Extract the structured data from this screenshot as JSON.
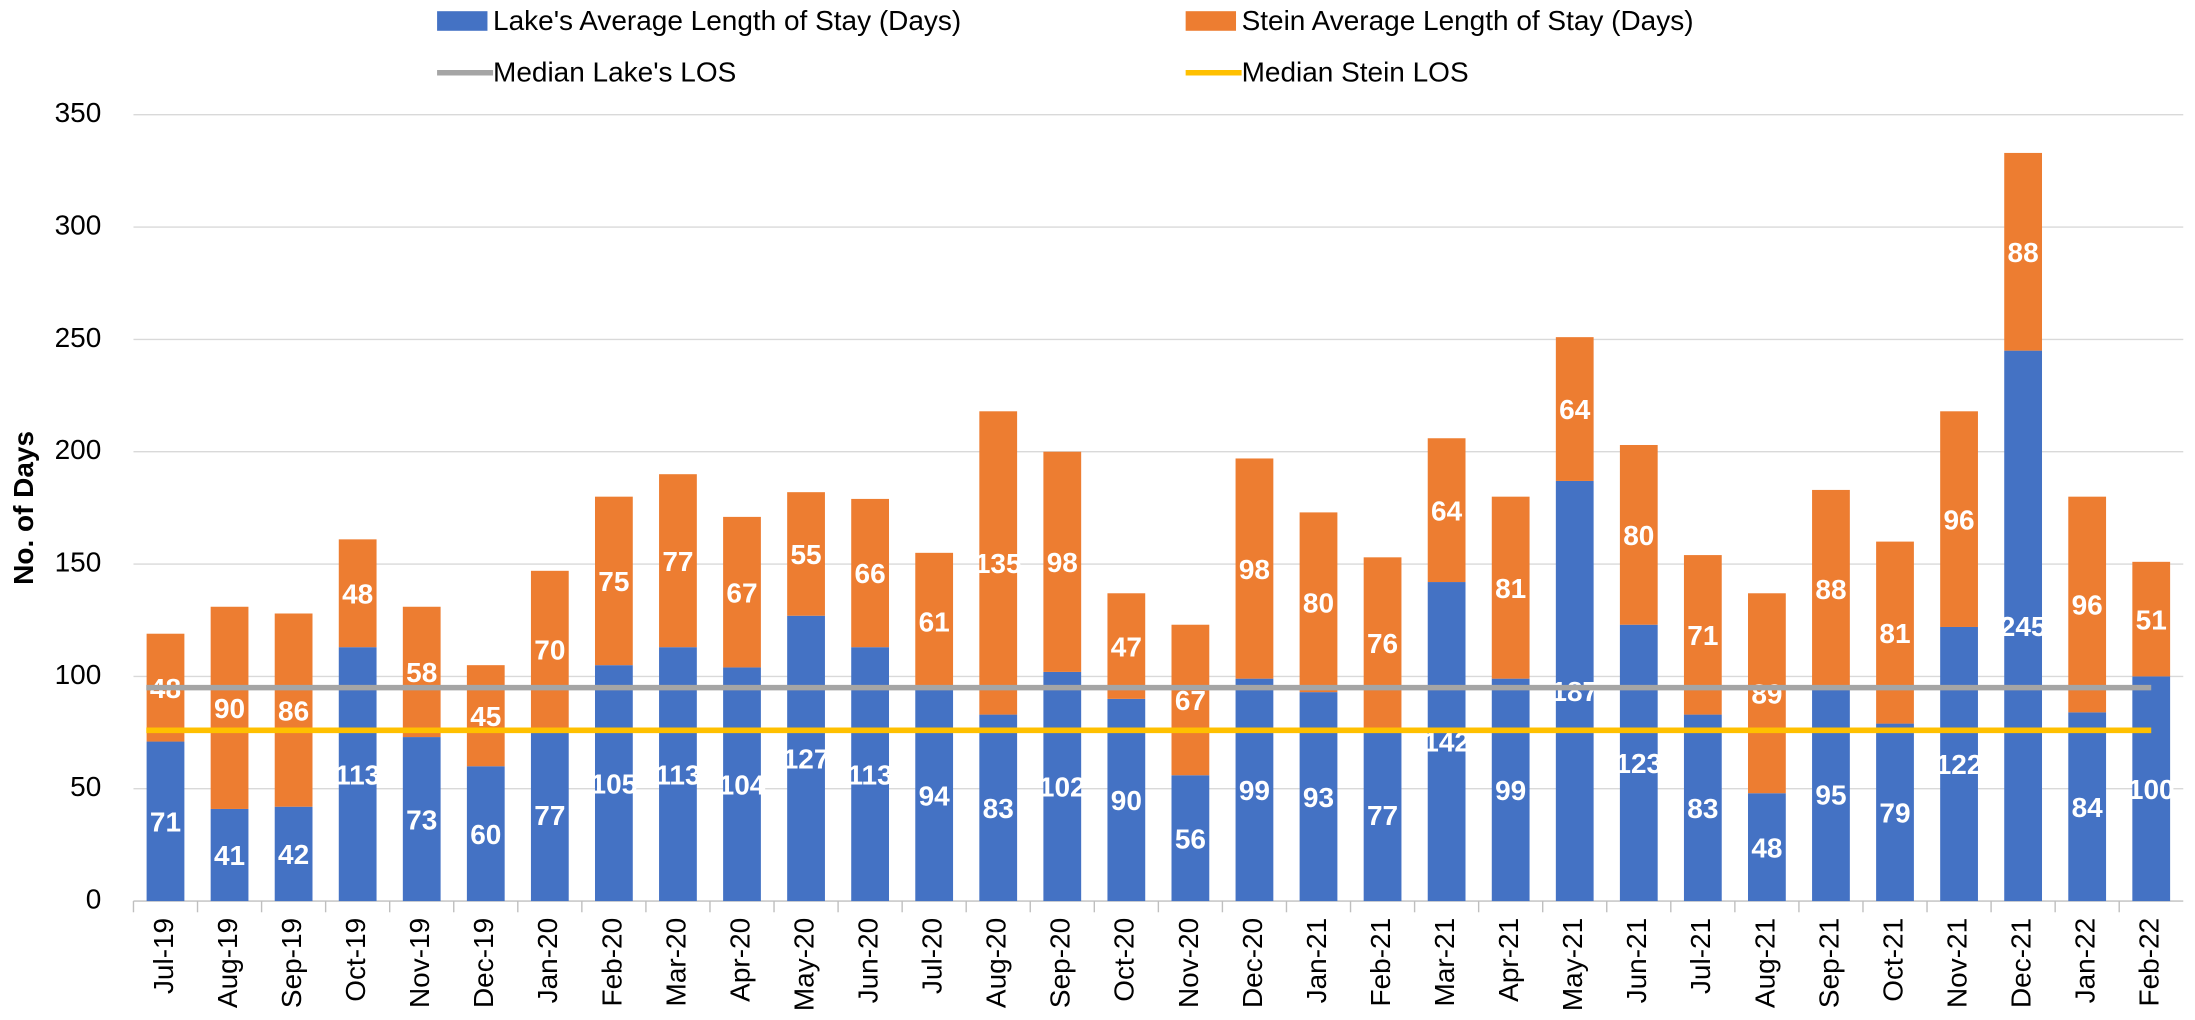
{
  "chart_data": {
    "type": "stacked_bar",
    "y_label": "No. of Days",
    "categories": [
      "Jul-19",
      "Aug-19",
      "Sep-19",
      "Oct-19",
      "Nov-19",
      "Dec-19",
      "Jan-20",
      "Feb-20",
      "Mar-20",
      "Apr-20",
      "May-20",
      "Jun-20",
      "Jul-20",
      "Aug-20",
      "Sep-20",
      "Oct-20",
      "Nov-20",
      "Dec-20",
      "Jan-21",
      "Feb-21",
      "Mar-21",
      "Apr-21",
      "May-21",
      "Jun-21",
      "Jul-21",
      "Aug-21",
      "Sep-21",
      "Oct-21",
      "Nov-21",
      "Dec-21",
      "Jan-22",
      "Feb-22"
    ],
    "series": [
      {
        "name": "Lake's Average Length of Stay (Days)",
        "color": "#4472c4",
        "values": [
          71,
          41,
          42,
          113,
          73,
          60,
          77,
          105,
          113,
          104,
          127,
          113,
          94,
          83,
          102,
          90,
          56,
          99,
          93,
          77,
          142,
          99,
          187,
          123,
          83,
          48,
          95,
          79,
          122,
          245,
          84,
          100
        ]
      },
      {
        "name": "Stein Average Length of Stay (Days)",
        "color": "#ed7d31",
        "values": [
          48,
          90,
          86,
          48,
          58,
          45,
          70,
          75,
          77,
          67,
          55,
          66,
          61,
          135,
          98,
          47,
          67,
          98,
          80,
          76,
          64,
          81,
          64,
          80,
          71,
          89,
          88,
          81,
          96,
          88,
          96,
          51
        ]
      }
    ],
    "median_lines": [
      {
        "name": "Median Lake's LOS",
        "color": "#a5a5a5",
        "value": 95
      },
      {
        "name": "Median Stein LOS",
        "color": "#ffc000",
        "value": 76
      }
    ],
    "ylim": [
      0,
      350
    ],
    "yticks": [
      0,
      50,
      100,
      150,
      200,
      250,
      300,
      350
    ],
    "grid": true
  }
}
